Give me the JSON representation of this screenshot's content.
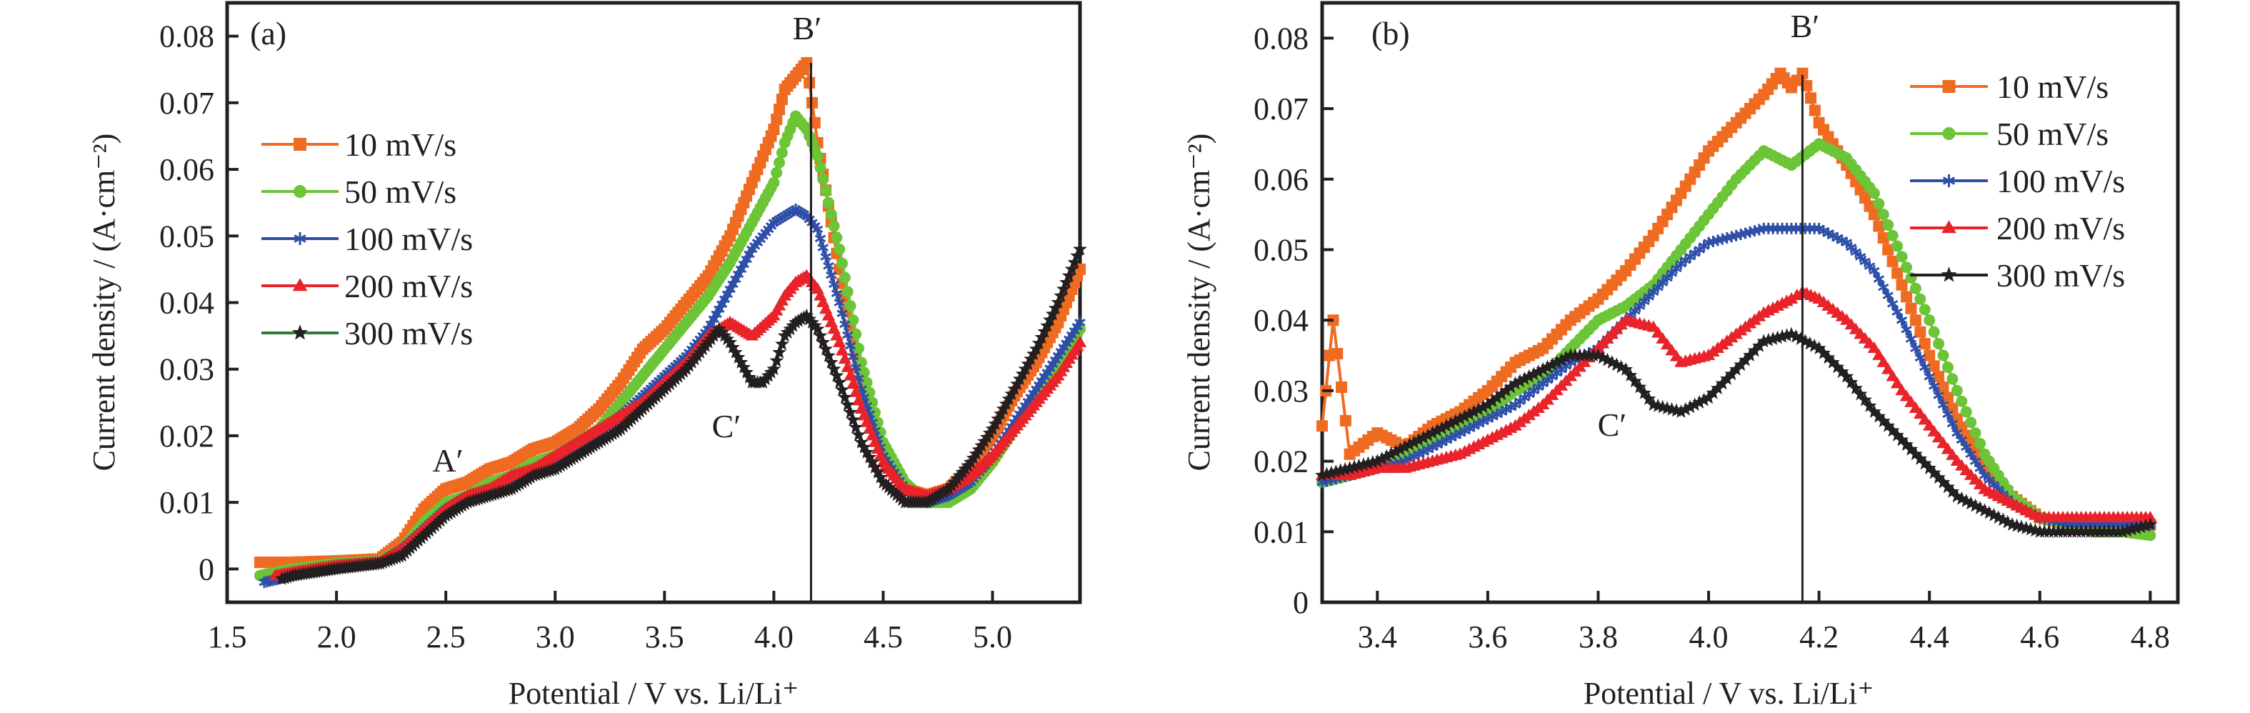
{
  "chart_data": [
    {
      "panel": "(a)",
      "type": "line",
      "title": "",
      "xlabel": "Potential / V vs. Li/Li⁺",
      "ylabel": "Current density / (A·cm⁻²)",
      "xlim": [
        1.5,
        5.4
      ],
      "ylim": [
        -0.005,
        0.085
      ],
      "xticks": [
        1.5,
        2.0,
        2.5,
        3.0,
        3.5,
        4.0,
        4.5,
        5.0
      ],
      "xtick_labels": [
        "1.5",
        "2.0",
        "2.5",
        "3.0",
        "3.5",
        "4.0",
        "4.5",
        "5.0"
      ],
      "yticks": [
        0,
        0.01,
        0.02,
        0.03,
        0.04,
        0.05,
        0.06,
        0.07,
        0.08
      ],
      "ytick_labels": [
        "0",
        "0.01",
        "0.02",
        "0.03",
        "0.04",
        "0.05",
        "0.06",
        "0.07",
        "0.08"
      ],
      "grid": false,
      "legend_position": "upper-left",
      "vertical_line_x": 4.17,
      "annotations": [
        {
          "text": "A′",
          "x": 2.48,
          "y": 0.0165
        },
        {
          "text": "B′",
          "x": 4.18,
          "y": 0.081
        },
        {
          "text": "C′",
          "x": 3.76,
          "y": 0.0215
        }
      ],
      "series": [
        {
          "name": "10 mV/s",
          "color": "#f06b22",
          "marker": "square",
          "x": [
            1.65,
            1.8,
            2.0,
            2.2,
            2.3,
            2.4,
            2.5,
            2.6,
            2.7,
            2.8,
            2.9,
            3.0,
            3.1,
            3.2,
            3.3,
            3.4,
            3.5,
            3.6,
            3.7,
            3.8,
            3.9,
            4.0,
            4.05,
            4.1,
            4.15,
            4.2,
            4.3,
            4.4,
            4.5,
            4.6,
            4.7,
            4.8,
            4.9,
            5.0,
            5.1,
            5.2,
            5.3,
            5.4
          ],
          "y": [
            0.001,
            0.001,
            0.0012,
            0.0015,
            0.004,
            0.009,
            0.012,
            0.013,
            0.015,
            0.016,
            0.018,
            0.019,
            0.021,
            0.024,
            0.028,
            0.033,
            0.036,
            0.04,
            0.044,
            0.05,
            0.058,
            0.066,
            0.072,
            0.074,
            0.076,
            0.064,
            0.045,
            0.028,
            0.017,
            0.012,
            0.011,
            0.012,
            0.015,
            0.02,
            0.026,
            0.031,
            0.037,
            0.045
          ]
        },
        {
          "name": "50 mV/s",
          "color": "#6cc437",
          "marker": "circle",
          "x": [
            1.65,
            1.8,
            2.0,
            2.2,
            2.3,
            2.4,
            2.5,
            2.6,
            2.7,
            2.8,
            2.9,
            3.0,
            3.1,
            3.2,
            3.3,
            3.4,
            3.5,
            3.6,
            3.7,
            3.8,
            3.9,
            4.0,
            4.05,
            4.1,
            4.15,
            4.2,
            4.3,
            4.4,
            4.5,
            4.6,
            4.7,
            4.8,
            4.9,
            5.0,
            5.1,
            5.2,
            5.3,
            5.4
          ],
          "y": [
            -0.001,
            0.0,
            0.0008,
            0.0012,
            0.003,
            0.007,
            0.01,
            0.011,
            0.013,
            0.014,
            0.016,
            0.017,
            0.019,
            0.021,
            0.025,
            0.029,
            0.033,
            0.037,
            0.041,
            0.046,
            0.052,
            0.058,
            0.064,
            0.068,
            0.066,
            0.062,
            0.048,
            0.031,
            0.019,
            0.013,
            0.01,
            0.01,
            0.012,
            0.016,
            0.021,
            0.026,
            0.031,
            0.036
          ]
        },
        {
          "name": "100 mV/s",
          "color": "#2e4fa8",
          "marker": "asterisk",
          "x": [
            1.67,
            1.8,
            2.0,
            2.2,
            2.3,
            2.4,
            2.5,
            2.6,
            2.7,
            2.8,
            2.9,
            3.0,
            3.1,
            3.2,
            3.3,
            3.4,
            3.5,
            3.6,
            3.7,
            3.8,
            3.9,
            4.0,
            4.05,
            4.1,
            4.15,
            4.2,
            4.3,
            4.4,
            4.5,
            4.6,
            4.7,
            4.8,
            4.9,
            5.0,
            5.1,
            5.2,
            5.3,
            5.4
          ],
          "y": [
            -0.002,
            -0.001,
            0.0005,
            0.001,
            0.003,
            0.006,
            0.009,
            0.011,
            0.012,
            0.013,
            0.015,
            0.016,
            0.018,
            0.02,
            0.023,
            0.026,
            0.029,
            0.032,
            0.036,
            0.042,
            0.048,
            0.052,
            0.053,
            0.054,
            0.053,
            0.051,
            0.04,
            0.027,
            0.017,
            0.012,
            0.01,
            0.011,
            0.013,
            0.017,
            0.022,
            0.027,
            0.032,
            0.037
          ]
        },
        {
          "name": "200 mV/s",
          "color": "#e8232a",
          "marker": "triangle",
          "x": [
            1.72,
            1.8,
            2.0,
            2.2,
            2.3,
            2.4,
            2.5,
            2.6,
            2.7,
            2.8,
            2.9,
            3.0,
            3.1,
            3.2,
            3.3,
            3.4,
            3.5,
            3.6,
            3.7,
            3.8,
            3.9,
            4.0,
            4.05,
            4.1,
            4.15,
            4.2,
            4.3,
            4.4,
            4.5,
            4.6,
            4.7,
            4.8,
            4.9,
            5.0,
            5.1,
            5.2,
            5.3,
            5.4
          ],
          "y": [
            -0.001,
            -0.0005,
            0.0005,
            0.001,
            0.003,
            0.006,
            0.009,
            0.011,
            0.012,
            0.014,
            0.015,
            0.017,
            0.019,
            0.021,
            0.023,
            0.025,
            0.028,
            0.031,
            0.035,
            0.037,
            0.035,
            0.038,
            0.041,
            0.043,
            0.044,
            0.042,
            0.034,
            0.024,
            0.016,
            0.012,
            0.011,
            0.012,
            0.014,
            0.017,
            0.021,
            0.025,
            0.029,
            0.034
          ]
        },
        {
          "name": "300 mV/s",
          "color": "#231f20",
          "legend_line_color": "#2f7a3a",
          "marker": "star",
          "x": [
            1.75,
            1.8,
            2.0,
            2.2,
            2.3,
            2.4,
            2.5,
            2.6,
            2.7,
            2.8,
            2.9,
            3.0,
            3.1,
            3.2,
            3.3,
            3.4,
            3.5,
            3.6,
            3.7,
            3.75,
            3.8,
            3.9,
            3.95,
            4.0,
            4.05,
            4.1,
            4.15,
            4.2,
            4.3,
            4.4,
            4.5,
            4.6,
            4.7,
            4.8,
            4.9,
            5.0,
            5.1,
            5.2,
            5.3,
            5.4
          ],
          "y": [
            -0.0015,
            -0.001,
            0.0,
            0.0008,
            0.002,
            0.005,
            0.008,
            0.01,
            0.011,
            0.012,
            0.014,
            0.015,
            0.017,
            0.019,
            0.021,
            0.024,
            0.027,
            0.03,
            0.034,
            0.036,
            0.034,
            0.028,
            0.028,
            0.03,
            0.035,
            0.037,
            0.038,
            0.036,
            0.028,
            0.019,
            0.013,
            0.01,
            0.01,
            0.012,
            0.016,
            0.021,
            0.027,
            0.033,
            0.04,
            0.048
          ]
        }
      ]
    },
    {
      "panel": "(b)",
      "type": "line",
      "title": "",
      "xlabel": "Potential / V vs. Li/Li⁺",
      "ylabel": "Current density / (A·cm⁻²)",
      "xlim": [
        3.3,
        4.85
      ],
      "ylim": [
        0,
        0.085
      ],
      "xticks": [
        3.4,
        3.6,
        3.8,
        4.0,
        4.2,
        4.4,
        4.6,
        4.8
      ],
      "xtick_labels": [
        "3.4",
        "3.6",
        "3.8",
        "4.0",
        "4.2",
        "4.4",
        "4.6",
        "4.8"
      ],
      "yticks": [
        0,
        0.01,
        0.02,
        0.03,
        0.04,
        0.05,
        0.06,
        0.07,
        0.08
      ],
      "ytick_labels": [
        "0",
        "0.01",
        "0.02",
        "0.03",
        "0.04",
        "0.05",
        "0.06",
        "0.07",
        "0.08"
      ],
      "grid": false,
      "legend_position": "upper-right",
      "vertical_line_x": 4.17,
      "annotations": [
        {
          "text": "B′",
          "x": 4.17,
          "y": 0.084
        },
        {
          "text": "C′",
          "x": 3.81,
          "y": 0.0255
        }
      ],
      "series": [
        {
          "name": "10 mV/s",
          "color": "#f06b22",
          "marker": "square",
          "x": [
            3.3,
            3.32,
            3.35,
            3.4,
            3.45,
            3.5,
            3.55,
            3.6,
            3.65,
            3.7,
            3.75,
            3.8,
            3.85,
            3.9,
            3.95,
            4.0,
            4.05,
            4.1,
            4.13,
            4.15,
            4.17,
            4.2,
            4.25,
            4.3,
            4.35,
            4.4,
            4.45,
            4.5,
            4.55,
            4.6,
            4.65,
            4.7,
            4.75,
            4.8
          ],
          "y": [
            0.025,
            0.04,
            0.021,
            0.024,
            0.022,
            0.025,
            0.027,
            0.03,
            0.034,
            0.036,
            0.04,
            0.043,
            0.047,
            0.052,
            0.058,
            0.064,
            0.068,
            0.072,
            0.075,
            0.073,
            0.075,
            0.068,
            0.062,
            0.055,
            0.045,
            0.035,
            0.026,
            0.019,
            0.015,
            0.012,
            0.011,
            0.011,
            0.011,
            0.011
          ]
        },
        {
          "name": "50 mV/s",
          "color": "#6cc437",
          "marker": "circle",
          "x": [
            3.3,
            3.35,
            3.4,
            3.45,
            3.5,
            3.55,
            3.6,
            3.65,
            3.7,
            3.75,
            3.8,
            3.85,
            3.9,
            3.95,
            4.0,
            4.05,
            4.1,
            4.15,
            4.2,
            4.25,
            4.3,
            4.35,
            4.4,
            4.45,
            4.5,
            4.55,
            4.6,
            4.65,
            4.7,
            4.75,
            4.8
          ],
          "y": [
            0.017,
            0.018,
            0.019,
            0.021,
            0.023,
            0.025,
            0.027,
            0.03,
            0.032,
            0.036,
            0.04,
            0.042,
            0.045,
            0.05,
            0.055,
            0.06,
            0.064,
            0.062,
            0.065,
            0.063,
            0.058,
            0.049,
            0.04,
            0.03,
            0.021,
            0.015,
            0.012,
            0.011,
            0.01,
            0.01,
            0.0095
          ]
        },
        {
          "name": "100 mV/s",
          "color": "#2e4fa8",
          "marker": "asterisk",
          "x": [
            3.3,
            3.35,
            3.4,
            3.45,
            3.5,
            3.55,
            3.6,
            3.65,
            3.7,
            3.75,
            3.8,
            3.85,
            3.9,
            3.95,
            4.0,
            4.05,
            4.1,
            4.15,
            4.2,
            4.25,
            4.3,
            4.35,
            4.4,
            4.45,
            4.5,
            4.55,
            4.6,
            4.65,
            4.7,
            4.75,
            4.8
          ],
          "y": [
            0.017,
            0.018,
            0.019,
            0.02,
            0.022,
            0.024,
            0.026,
            0.028,
            0.031,
            0.034,
            0.036,
            0.04,
            0.044,
            0.048,
            0.051,
            0.052,
            0.053,
            0.053,
            0.053,
            0.051,
            0.047,
            0.04,
            0.032,
            0.024,
            0.018,
            0.014,
            0.012,
            0.011,
            0.011,
            0.011,
            0.011
          ]
        },
        {
          "name": "200 mV/s",
          "color": "#e8232a",
          "marker": "triangle",
          "x": [
            3.3,
            3.35,
            3.4,
            3.45,
            3.5,
            3.55,
            3.6,
            3.65,
            3.7,
            3.75,
            3.8,
            3.85,
            3.9,
            3.95,
            4.0,
            4.05,
            4.1,
            4.15,
            4.17,
            4.2,
            4.25,
            4.3,
            4.35,
            4.4,
            4.45,
            4.5,
            4.55,
            4.6,
            4.65,
            4.7,
            4.75,
            4.8
          ],
          "y": [
            0.018,
            0.018,
            0.019,
            0.019,
            0.02,
            0.021,
            0.023,
            0.025,
            0.028,
            0.032,
            0.036,
            0.04,
            0.039,
            0.034,
            0.035,
            0.038,
            0.041,
            0.043,
            0.044,
            0.043,
            0.04,
            0.036,
            0.03,
            0.025,
            0.02,
            0.016,
            0.014,
            0.012,
            0.012,
            0.012,
            0.012,
            0.012
          ]
        },
        {
          "name": "300 mV/s",
          "color": "#231f20",
          "marker": "star",
          "x": [
            3.3,
            3.35,
            3.4,
            3.45,
            3.5,
            3.55,
            3.6,
            3.65,
            3.7,
            3.75,
            3.8,
            3.85,
            3.9,
            3.95,
            4.0,
            4.05,
            4.1,
            4.15,
            4.2,
            4.25,
            4.3,
            4.35,
            4.4,
            4.45,
            4.5,
            4.55,
            4.6,
            4.65,
            4.7,
            4.75,
            4.8
          ],
          "y": [
            0.018,
            0.019,
            0.02,
            0.022,
            0.024,
            0.026,
            0.028,
            0.031,
            0.033,
            0.035,
            0.035,
            0.033,
            0.028,
            0.027,
            0.029,
            0.033,
            0.037,
            0.038,
            0.036,
            0.032,
            0.027,
            0.023,
            0.019,
            0.015,
            0.013,
            0.011,
            0.01,
            0.01,
            0.01,
            0.01,
            0.011
          ]
        }
      ]
    }
  ]
}
